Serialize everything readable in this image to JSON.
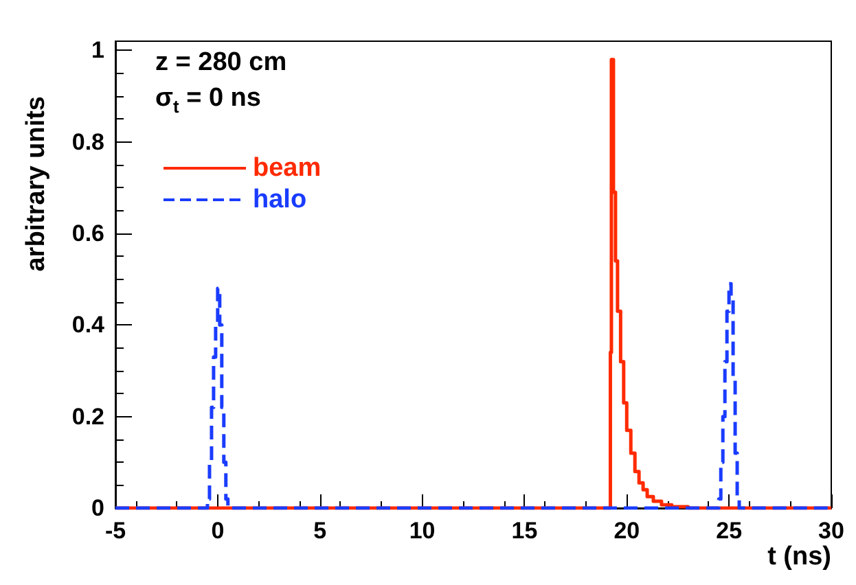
{
  "chart_data": {
    "type": "step",
    "xlabel": "t (ns)",
    "ylabel": "arbitrary units",
    "annotations": [
      "z = 280 cm",
      "σ$_{t}$ = 0 ns"
    ],
    "xlim": [
      -5,
      30
    ],
    "ylim": [
      0,
      1.02
    ],
    "xticks": [
      -5,
      0,
      5,
      10,
      15,
      20,
      25,
      30
    ],
    "yticks": [
      0,
      0.2,
      0.4,
      0.6,
      0.8,
      1
    ],
    "grid": false,
    "legend": "top left",
    "marker": "none",
    "series": [
      {
        "name": "beam",
        "color": "#ff2a00",
        "line_style": "solid",
        "x": [
          -5,
          19.15,
          19.2,
          19.25,
          19.35,
          19.45,
          19.55,
          19.7,
          19.85,
          20.0,
          20.2,
          20.4,
          20.6,
          20.8,
          21.0,
          21.3,
          21.7,
          22.2,
          23,
          30
        ],
        "values": [
          0,
          0,
          0.34,
          0.98,
          0.69,
          0.54,
          0.43,
          0.32,
          0.23,
          0.17,
          0.12,
          0.08,
          0.055,
          0.04,
          0.025,
          0.015,
          0.007,
          0.003,
          0,
          0
        ]
      },
      {
        "name": "halo",
        "color": "#1a3cff",
        "line_style": "dashed",
        "x": [
          -5,
          -0.6,
          -0.5,
          -0.4,
          -0.3,
          -0.2,
          -0.1,
          0,
          0.1,
          0.2,
          0.3,
          0.4,
          0.5,
          24.4,
          24.5,
          24.6,
          24.7,
          24.8,
          24.9,
          25,
          25.1,
          25.2,
          25.3,
          25.4,
          25.5,
          30
        ],
        "values": [
          0,
          0,
          0.02,
          0.1,
          0.22,
          0.33,
          0.4,
          0.48,
          0.4,
          0.22,
          0.1,
          0.02,
          0,
          0,
          0.02,
          0.1,
          0.2,
          0.32,
          0.43,
          0.49,
          0.46,
          0.28,
          0.12,
          0.02,
          0,
          0
        ]
      }
    ]
  }
}
